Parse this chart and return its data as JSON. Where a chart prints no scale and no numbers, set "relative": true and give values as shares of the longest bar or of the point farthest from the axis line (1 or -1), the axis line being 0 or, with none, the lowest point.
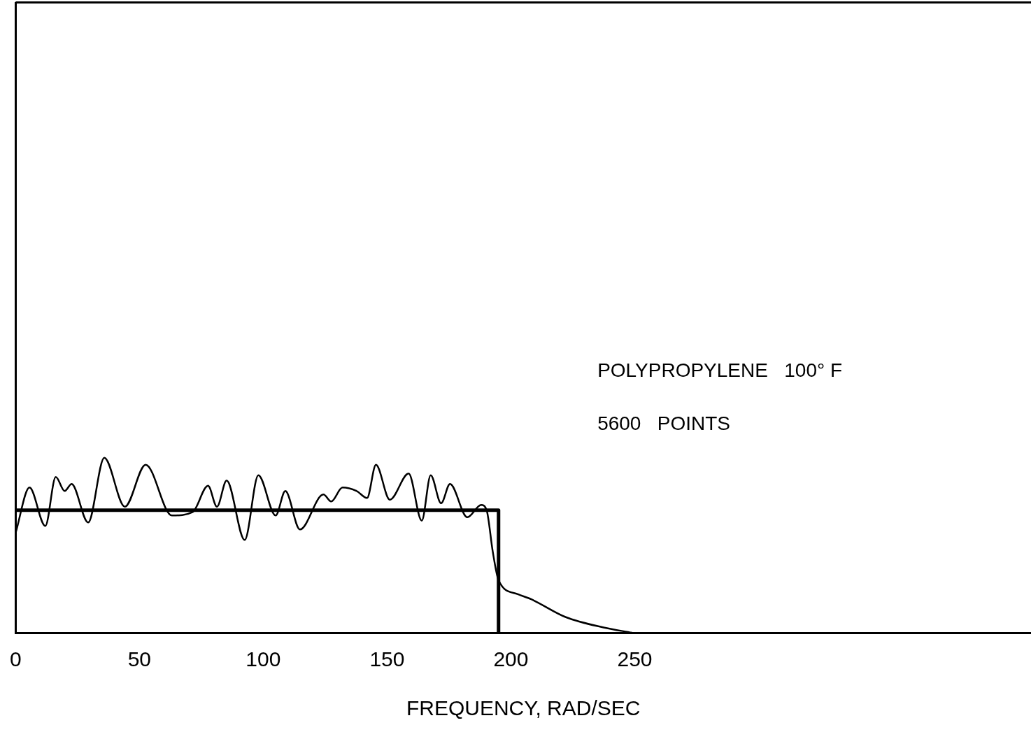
{
  "chart_data": {
    "type": "line",
    "relative": true,
    "xlabel": "FREQUENCY, RAD/SEC",
    "xlim": [
      0,
      410
    ],
    "xticks": [
      0,
      50,
      100,
      150,
      200,
      250
    ],
    "grid": false,
    "legend": false,
    "marker": "none",
    "line_style": "solid",
    "annotations": [
      "POLYPROPYLENE   100° F",
      "5600   POINTS"
    ],
    "series": [
      {
        "color": "#000000",
        "x": [
          0,
          5.6,
          12,
          16.2,
          19.8,
          22.6,
          29.3,
          35.8,
          44.1,
          52.5,
          63.1,
          71.5,
          77.7,
          81.3,
          85.2,
          92.5,
          98,
          105,
          108.9,
          114.8,
          124.3,
          127.4,
          132,
          137.7,
          141.9,
          145.5,
          151.1,
          158.7,
          164,
          167.6,
          171.8,
          175.4,
          182.4,
          188,
          190.2,
          192.7,
          195,
          202.8,
          208.4,
          222,
          237.4,
          248.9
        ],
        "values": [
          0.57,
          0.83,
          0.61,
          0.89,
          0.81,
          0.85,
          0.63,
          1,
          0.72,
          0.96,
          0.67,
          0.69,
          0.84,
          0.72,
          0.87,
          0.53,
          0.9,
          0.67,
          0.81,
          0.59,
          0.79,
          0.75,
          0.83,
          0.81,
          0.77,
          0.96,
          0.76,
          0.91,
          0.64,
          0.9,
          0.74,
          0.85,
          0.66,
          0.73,
          0.7,
          0.46,
          0.3,
          0.22,
          0.19,
          0.09,
          0.03,
          0
        ]
      },
      {
        "color": "#000000",
        "x": [
          0,
          195,
          195
        ],
        "values": [
          0.7,
          0.7,
          0
        ]
      }
    ]
  }
}
